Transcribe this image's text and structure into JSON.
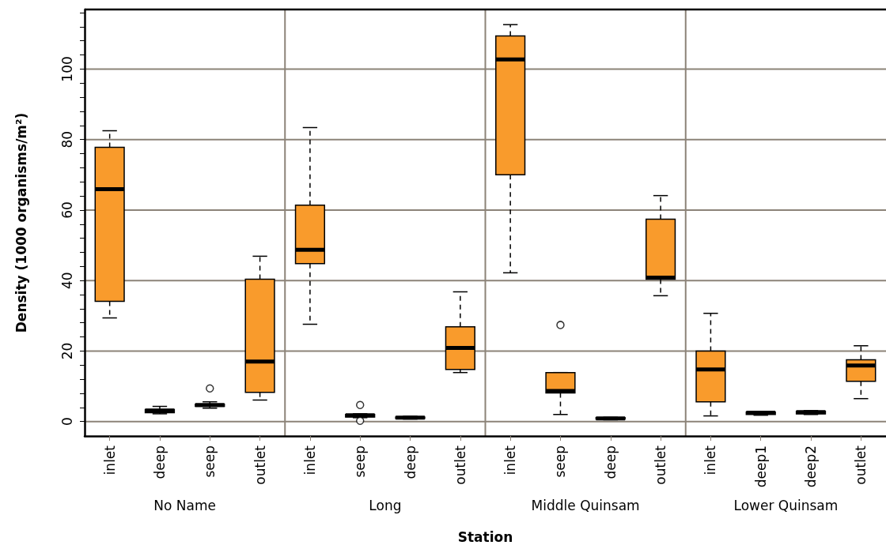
{
  "chart_data": {
    "type": "box",
    "xlabel": "Station",
    "ylabel": "Density (1000 organisms/m²)",
    "categories": [
      "inlet",
      "deep",
      "seep",
      "outlet",
      "inlet",
      "seep",
      "deep",
      "outlet",
      "inlet",
      "seep",
      "deep",
      "outlet",
      "inlet",
      "deep1",
      "deep2",
      "outlet"
    ],
    "annotations": [
      "No Name",
      "Long",
      "Middle Quinsam",
      "Lower Quinsam"
    ],
    "ylim": [
      -4.1,
      116.9
    ],
    "yticks": [
      0,
      {
        "value": 4,
        "label": null
      },
      {
        "value": 8,
        "label": null
      },
      {
        "value": 12,
        "label": null
      },
      {
        "value": 16,
        "label": null
      },
      20,
      {
        "value": 24,
        "label": null
      },
      {
        "value": 28,
        "label": null
      },
      {
        "value": 32,
        "label": null
      },
      {
        "value": 36,
        "label": null
      },
      40,
      {
        "value": 44,
        "label": null
      },
      {
        "value": 48,
        "label": null
      },
      {
        "value": 52,
        "label": null
      },
      {
        "value": 56,
        "label": null
      },
      60,
      {
        "value": 64,
        "label": null
      },
      {
        "value": 68,
        "label": null
      },
      {
        "value": 72,
        "label": null
      },
      {
        "value": 76,
        "label": null
      },
      80,
      {
        "value": 84,
        "label": null
      },
      {
        "value": 88,
        "label": null
      },
      {
        "value": 92,
        "label": null
      },
      {
        "value": 96,
        "label": null
      },
      100,
      {
        "value": 104,
        "label": null
      },
      {
        "value": 108,
        "label": null
      },
      {
        "value": 112,
        "label": null
      },
      {
        "value": 116,
        "label": null
      }
    ],
    "grid": true,
    "series": [
      {
        "color": "#f99b2c",
        "boxes": [
          {
            "low": 29.4,
            "q1": 34.1,
            "median": 65.9,
            "q3": 77.8,
            "high": 82.5
          },
          {
            "low": 2.2,
            "q1": 2.5,
            "median": 3.1,
            "q3": 3.4,
            "high": 4.3
          },
          {
            "low": 3.8,
            "q1": 4.3,
            "median": 4.7,
            "q3": 4.9,
            "high": 5.6,
            "outliers": [
              9.4
            ]
          },
          {
            "low": 6.1,
            "q1": 8.3,
            "median": 17.0,
            "q3": 40.4,
            "high": 46.9
          },
          {
            "low": 27.6,
            "q1": 44.8,
            "median": 48.7,
            "q3": 61.4,
            "high": 83.4
          },
          {
            "low": 1.1,
            "q1": 1.3,
            "median": 1.8,
            "q3": 2.0,
            "high": 2.2,
            "outliers": [
              4.7,
              0.2
            ]
          },
          {
            "low": 0.7,
            "q1": 0.9,
            "median": 1.1,
            "q3": 1.3,
            "high": 1.5
          },
          {
            "low": 13.9,
            "q1": 14.8,
            "median": 20.9,
            "q3": 26.9,
            "high": 36.8
          },
          {
            "low": 42.2,
            "q1": 70.0,
            "median": 102.7,
            "q3": 109.4,
            "high": 112.6
          },
          {
            "low": 2.0,
            "q1": 8.1,
            "median": 8.7,
            "q3": 13.9,
            "high": 13.9,
            "outliers": [
              27.4
            ]
          },
          {
            "low": 0.5,
            "q1": 0.7,
            "median": 0.9,
            "q3": 1.1,
            "high": 1.2
          },
          {
            "low": 35.7,
            "q1": 40.4,
            "median": 40.8,
            "q3": 57.4,
            "high": 64.1
          },
          {
            "low": 1.6,
            "q1": 5.6,
            "median": 14.8,
            "q3": 20.0,
            "high": 30.7
          },
          {
            "low": 1.8,
            "q1": 2.0,
            "median": 2.5,
            "q3": 2.7,
            "high": 2.9
          },
          {
            "low": 2.0,
            "q1": 2.2,
            "median": 2.7,
            "q3": 2.9,
            "high": 3.1
          },
          {
            "low": 6.5,
            "q1": 11.4,
            "median": 15.9,
            "q3": 17.5,
            "high": 21.5
          }
        ]
      }
    ]
  }
}
